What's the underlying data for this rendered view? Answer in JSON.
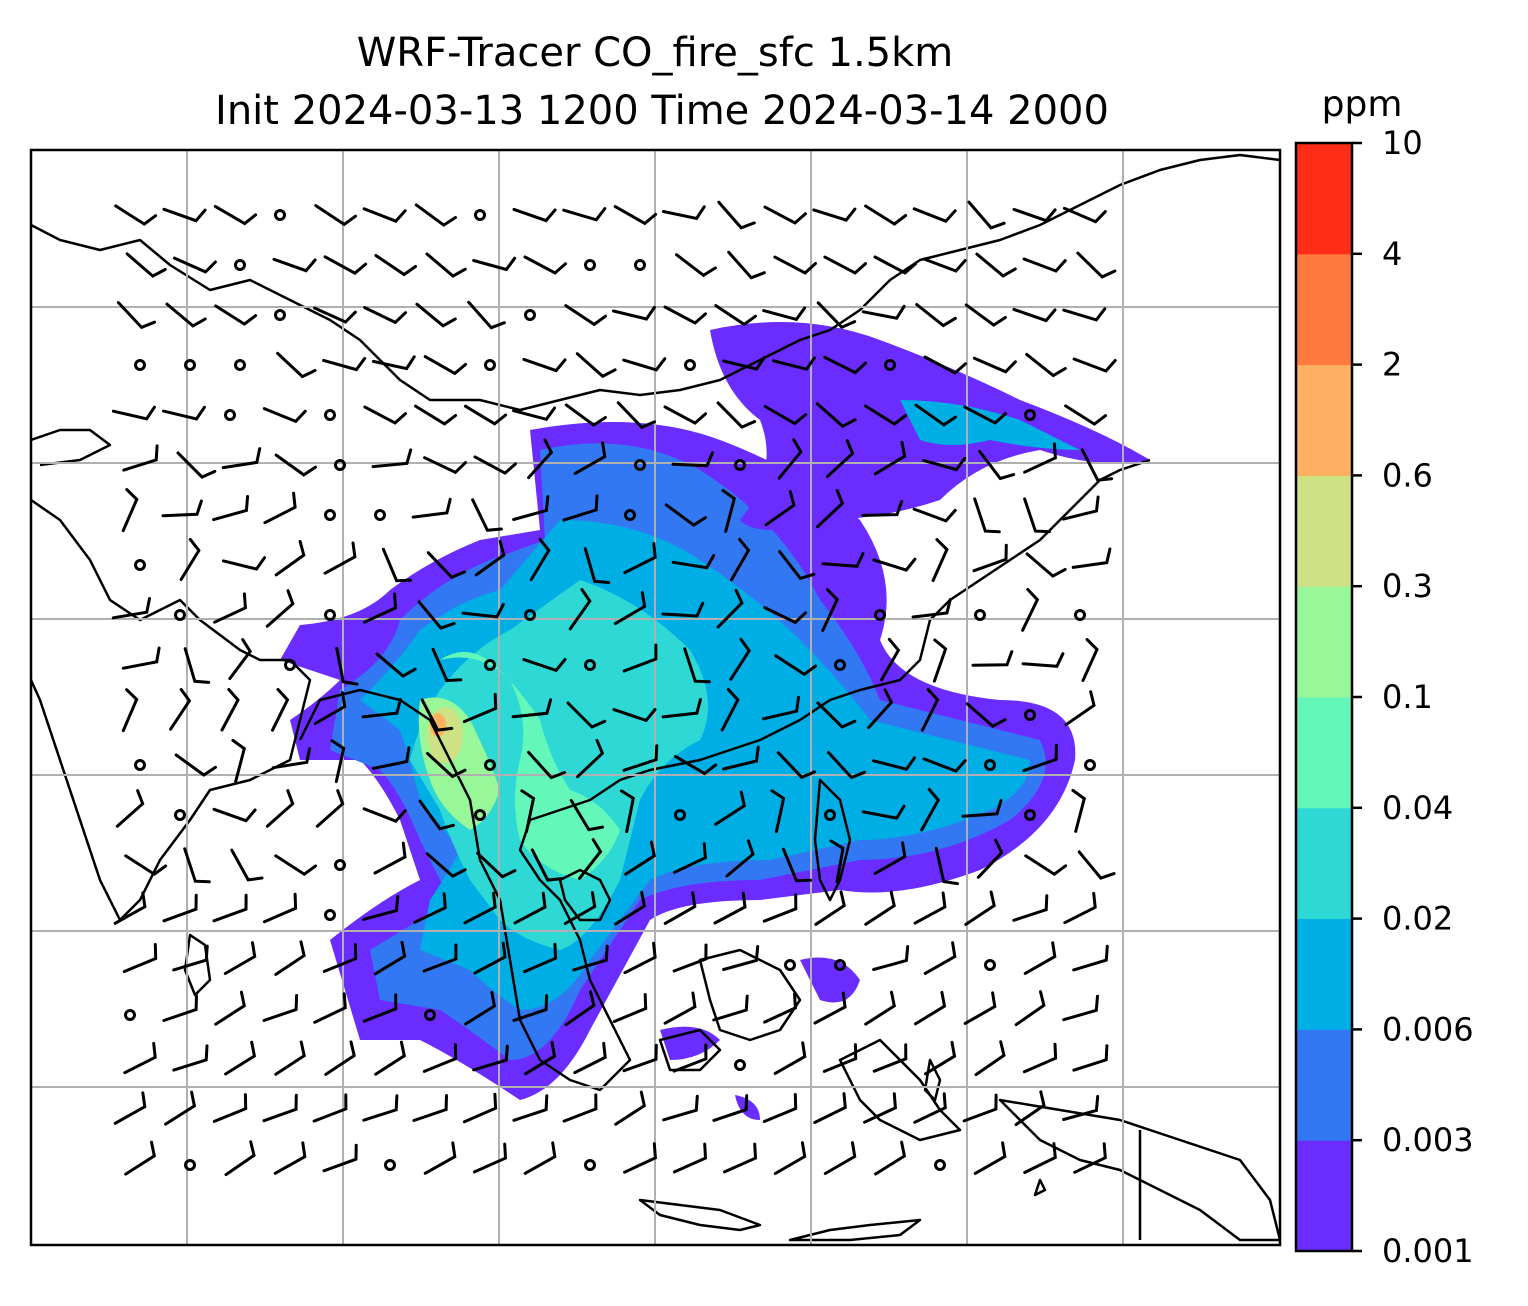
{
  "title_line1": "WRF-Tracer CO_fire_sfc 1.5km",
  "title_line2": "Init 2024-03-13 1200 Time 2024-03-14 2000",
  "colorbar": {
    "unit": "ppm",
    "ticks": [
      "0.001",
      "0.003",
      "0.006",
      "0.02",
      "0.04",
      "0.1",
      "0.3",
      "0.6",
      "2",
      "4",
      "10"
    ],
    "colors": [
      "#6a2cff",
      "#3278f2",
      "#00aee6",
      "#2ed8d5",
      "#63f7ba",
      "#98f798",
      "#cee185",
      "#ffb060",
      "#ff7a3c",
      "#ff2e19"
    ]
  }
}
